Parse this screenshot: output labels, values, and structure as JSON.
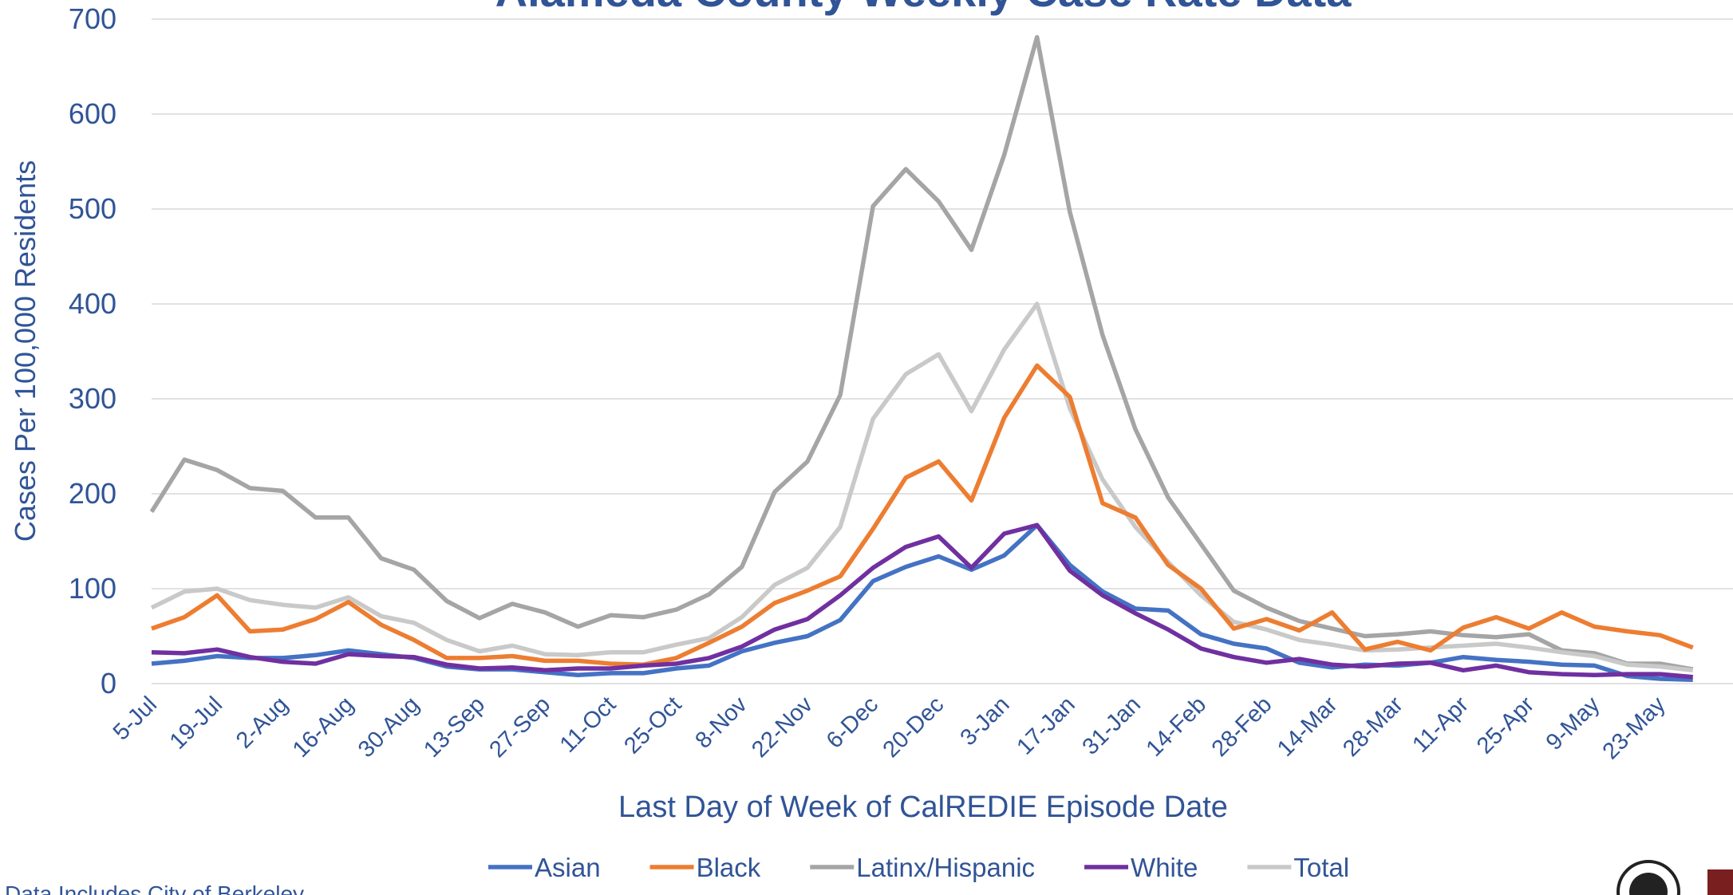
{
  "chart_data": {
    "type": "line",
    "title": "Alameda County Weekly Case Rate Data",
    "x_label": "Last Day of Week of CalREDIE Episode Date",
    "y_label": "Cases Per 100,000 Residents",
    "footnote": "Data Includes City of Berkeley",
    "categories": [
      "5-Jul",
      null,
      "19-Jul",
      null,
      "2-Aug",
      null,
      "16-Aug",
      null,
      "30-Aug",
      null,
      "13-Sep",
      null,
      "27-Sep",
      null,
      "11-Oct",
      null,
      "25-Oct",
      null,
      "8-Nov",
      null,
      "22-Nov",
      null,
      "6-Dec",
      null,
      "20-Dec",
      null,
      "3-Jan",
      null,
      "17-Jan",
      null,
      "31-Jan",
      null,
      "14-Feb",
      null,
      "28-Feb",
      null,
      "14-Mar",
      null,
      "28-Mar",
      null,
      "11-Apr",
      null,
      "25-Apr",
      null,
      "9-May",
      null,
      "23-May",
      null
    ],
    "ylim": [
      0,
      700
    ],
    "yticks": [
      0,
      100,
      200,
      300,
      400,
      500,
      600,
      700
    ],
    "grid": true,
    "legend": "bottom",
    "series": [
      {
        "name": "Asian",
        "color": "#4472c4",
        "values": [
          21,
          24,
          29,
          27,
          27,
          30,
          35,
          31,
          27,
          18,
          15,
          15,
          12,
          9,
          11,
          11,
          16,
          19,
          34,
          43,
          50,
          67,
          108,
          123,
          134,
          120,
          135,
          167,
          125,
          97,
          79,
          77,
          52,
          42,
          37,
          22,
          17,
          20,
          19,
          22,
          28,
          25,
          23,
          20,
          19,
          8,
          5,
          4
        ]
      },
      {
        "name": "Black",
        "color": "#ed7d31",
        "values": [
          58,
          70,
          93,
          55,
          57,
          68,
          86,
          62,
          46,
          27,
          27,
          29,
          24,
          24,
          21,
          20,
          27,
          43,
          60,
          85,
          98,
          113,
          163,
          217,
          234,
          193,
          280,
          335,
          302,
          190,
          175,
          125,
          100,
          58,
          68,
          56,
          75,
          36,
          44,
          35,
          59,
          70,
          58,
          75,
          60,
          55,
          51,
          38
        ]
      },
      {
        "name": "Latinx/Hispanic",
        "color": "#a5a5a5",
        "values": [
          181,
          236,
          225,
          206,
          203,
          175,
          175,
          132,
          120,
          87,
          69,
          84,
          75,
          60,
          72,
          70,
          78,
          94,
          123,
          202,
          234,
          304,
          503,
          542,
          508,
          457,
          557,
          681,
          497,
          367,
          268,
          196,
          147,
          98,
          80,
          66,
          58,
          50,
          52,
          55,
          51,
          49,
          52,
          35,
          32,
          21,
          21,
          15
        ]
      },
      {
        "name": "White",
        "color": "#7030a0",
        "values": [
          33,
          32,
          36,
          28,
          23,
          21,
          31,
          29,
          28,
          20,
          16,
          17,
          14,
          16,
          16,
          19,
          21,
          27,
          39,
          57,
          68,
          93,
          122,
          144,
          155,
          122,
          158,
          167,
          119,
          93,
          74,
          57,
          37,
          28,
          22,
          26,
          20,
          18,
          21,
          22,
          14,
          19,
          12,
          10,
          9,
          10,
          10,
          7
        ]
      },
      {
        "name": "Total",
        "color": "#c9c9c9",
        "values": [
          80,
          97,
          100,
          88,
          83,
          80,
          91,
          71,
          64,
          46,
          34,
          40,
          31,
          30,
          33,
          33,
          41,
          48,
          70,
          104,
          122,
          165,
          279,
          326,
          347,
          287,
          352,
          400,
          290,
          215,
          165,
          128,
          93,
          65,
          57,
          46,
          41,
          35,
          36,
          38,
          40,
          42,
          38,
          33,
          29,
          20,
          18,
          14
        ]
      }
    ]
  }
}
